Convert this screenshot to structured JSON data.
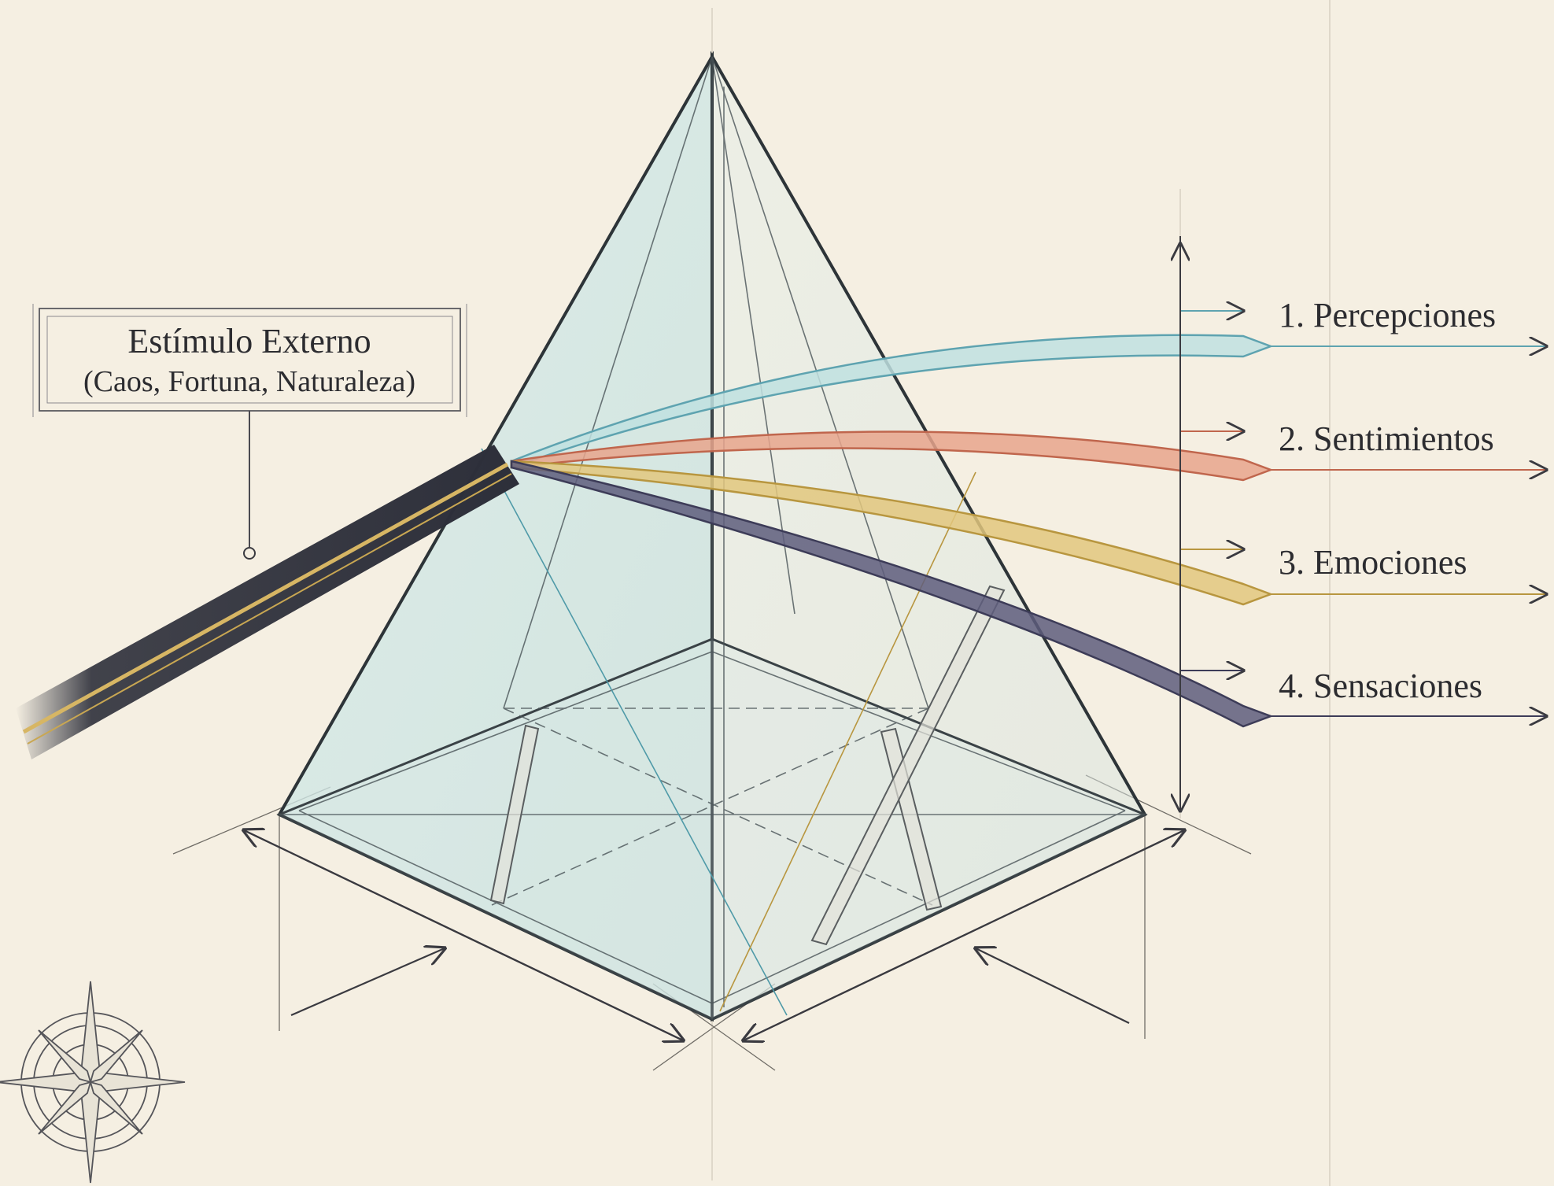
{
  "stimulus": {
    "title": "Estímulo Externo",
    "subtitle": "(Caos, Fortuna, Naturaleza)"
  },
  "outputs": [
    {
      "label": "1. Percepciones",
      "color": "#5ea3b0",
      "fill": "#bfe0e0"
    },
    {
      "label": "2. Sentimientos",
      "color": "#c0664d",
      "fill": "#e7a58c"
    },
    {
      "label": "3. Emociones",
      "color": "#b8963f",
      "fill": "#e2c77e"
    },
    {
      "label": "4. Sensaciones",
      "color": "#3d3c58",
      "fill": "#5e5d7c"
    }
  ],
  "colors": {
    "background": "#f5efe2",
    "ink": "#2c2c30",
    "prism_glass": "#cfe6e6",
    "incoming_beam": "#2d2f3a",
    "incoming_core": "#d7b664"
  },
  "icons": {
    "compass": "compass-rose-icon"
  }
}
